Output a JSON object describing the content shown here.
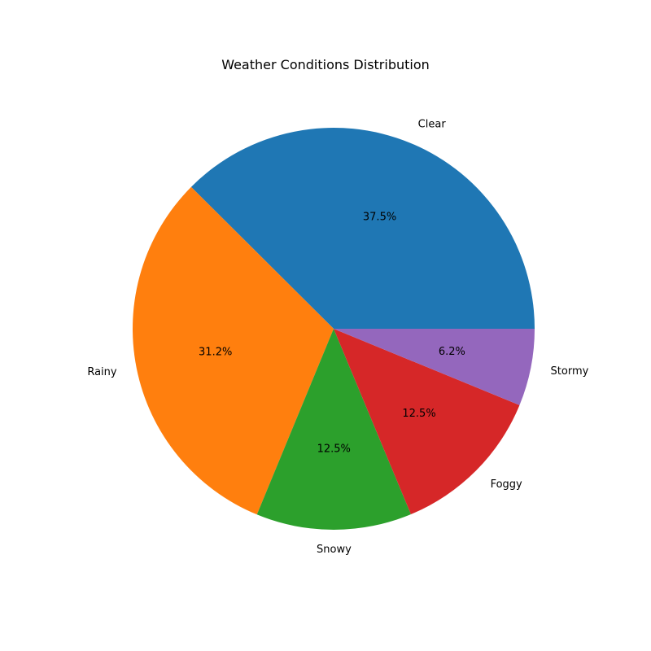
{
  "chart_data": {
    "type": "pie",
    "title": "Weather Conditions Distribution",
    "categories": [
      "Clear",
      "Rainy",
      "Snowy",
      "Foggy",
      "Stormy"
    ],
    "values": [
      37.5,
      31.2,
      12.5,
      12.5,
      6.2
    ],
    "percent_labels": [
      "37.5%",
      "31.2%",
      "12.5%",
      "12.5%",
      "6.2%"
    ],
    "colors": [
      "#1f77b4",
      "#ff7f0e",
      "#2ca02c",
      "#d62728",
      "#9467bd"
    ],
    "start_angle_deg": 0,
    "direction": "counterclockwise"
  }
}
